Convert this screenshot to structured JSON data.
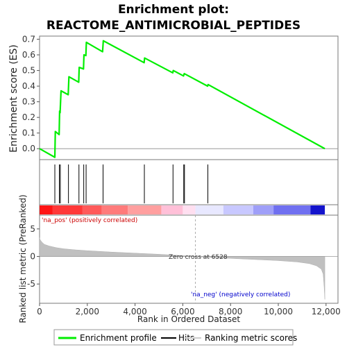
{
  "chart_data": {
    "type": "line",
    "title_line1": "Enrichment plot:",
    "title_line2": "REACTOME_ANTIMICROBIAL_PEPTIDES",
    "es_panel": {
      "ylabel": "Enrichment score (ES)",
      "ylim": [
        -0.07,
        0.72
      ],
      "yticks": [
        0.0,
        0.1,
        0.2,
        0.3,
        0.4,
        0.5,
        0.6,
        0.7
      ],
      "ytick_labels": [
        "0.0",
        "0.1",
        "0.2",
        "0.3",
        "0.4",
        "0.5",
        "0.6",
        "0.7"
      ],
      "series_name": "Enrichment profile",
      "color": "#00ee00",
      "x": [
        0,
        640,
        660,
        820,
        840,
        860,
        900,
        1200,
        1230,
        1640,
        1660,
        1840,
        1860,
        1940,
        1960,
        2640,
        2670,
        4380,
        4400,
        5580,
        5600,
        6030,
        6060,
        7040,
        7060,
        11950
      ],
      "y": [
        0.0,
        -0.055,
        0.11,
        0.09,
        0.24,
        0.23,
        0.37,
        0.345,
        0.46,
        0.425,
        0.52,
        0.51,
        0.6,
        0.595,
        0.68,
        0.62,
        0.69,
        0.55,
        0.58,
        0.485,
        0.5,
        0.465,
        0.48,
        0.4,
        0.41,
        0.0
      ]
    },
    "hits_panel": {
      "hit_positions": [
        640,
        830,
        870,
        1210,
        1650,
        1850,
        1950,
        2660,
        4390,
        5590,
        6040,
        6070,
        7050
      ]
    },
    "color_bar": {
      "pos_label": "'na_pos' (positively correlated)",
      "neg_label": "'na_neg' (negatively correlated)",
      "pos_color": "#cc0000",
      "neg_color": "#0000cc",
      "segments": [
        {
          "from": 0,
          "to": 550,
          "color": "#ff1414"
        },
        {
          "from": 550,
          "to": 1800,
          "color": "#ff3838"
        },
        {
          "from": 1800,
          "to": 2600,
          "color": "#ff5a5a"
        },
        {
          "from": 2600,
          "to": 3700,
          "color": "#ff7b7b"
        },
        {
          "from": 3700,
          "to": 5100,
          "color": "#ff9f9f"
        },
        {
          "from": 5100,
          "to": 6000,
          "color": "#ffc0d8"
        },
        {
          "from": 6000,
          "to": 6528,
          "color": "#ffdff0"
        },
        {
          "from": 6528,
          "to": 7700,
          "color": "#e8e8ff"
        },
        {
          "from": 7700,
          "to": 8950,
          "color": "#c8c8ff"
        },
        {
          "from": 8950,
          "to": 9800,
          "color": "#9f9ff8"
        },
        {
          "from": 9800,
          "to": 11350,
          "color": "#7070f0"
        },
        {
          "from": 11350,
          "to": 11950,
          "color": "#1414cc"
        }
      ]
    },
    "metric_panel": {
      "ylabel": "Ranked list metric (PreRanked)",
      "ylim": [
        -8.5,
        7.5
      ],
      "yticks": [
        -5,
        0,
        5
      ],
      "ytick_labels": [
        "-5",
        "0",
        "5"
      ],
      "zero_cross_label": "Zero cross at 6528",
      "zero_cross": 6528,
      "series_name": "Ranking metric scores",
      "x": [
        0,
        30,
        100,
        200,
        400,
        700,
        1000,
        1500,
        2000,
        3000,
        4000,
        5000,
        6000,
        6528,
        7000,
        8000,
        9000,
        10000,
        10800,
        11300,
        11600,
        11800,
        11880,
        11920,
        11950
      ],
      "y": [
        3.4,
        3.0,
        2.6,
        2.2,
        1.9,
        1.6,
        1.4,
        1.2,
        1.05,
        0.8,
        0.6,
        0.4,
        0.15,
        0.0,
        -0.15,
        -0.35,
        -0.55,
        -0.75,
        -1.0,
        -1.3,
        -1.7,
        -2.3,
        -3.2,
        -5.5,
        -7.8
      ]
    },
    "xaxis": {
      "xlabel": "Rank in Ordered Dataset",
      "xlim": [
        0,
        12500
      ],
      "xticks": [
        0,
        2000,
        4000,
        6000,
        8000,
        10000,
        12000
      ],
      "xtick_labels": [
        "0",
        "2,000",
        "4,000",
        "6,000",
        "8,000",
        "10,000",
        "12,000"
      ]
    },
    "legend": {
      "items": [
        {
          "label": "Enrichment profile",
          "color": "#00ee00"
        },
        {
          "label": "Hits",
          "color": "#000000"
        },
        {
          "label": "Ranking metric scores",
          "color": "#cccccc"
        }
      ]
    }
  }
}
